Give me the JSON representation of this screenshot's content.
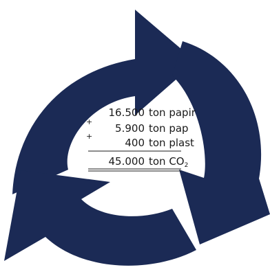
{
  "diagram": {
    "arrow_color": "#1b2a55",
    "rows": [
      {
        "number": "16.500",
        "label": "ton papir"
      },
      {
        "number": "5.900",
        "label": "ton pap"
      },
      {
        "number": "400",
        "label": "ton plast"
      }
    ],
    "total": {
      "number": "45.000",
      "label": "ton CO",
      "subscript": "2"
    },
    "operator_symbol": "+"
  }
}
